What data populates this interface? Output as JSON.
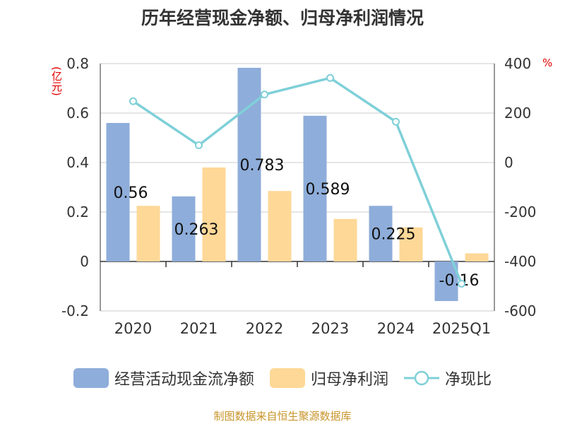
{
  "title": "历年经营现金净额、归母净利润情况",
  "source": "制图数据来自恒生聚源数据库",
  "colors": {
    "bar1": "#8eadda",
    "bar2": "#fed897",
    "line": "#7fd0d8",
    "red": "#e00000",
    "grid": "#cccccc"
  },
  "chart_data": {
    "type": "bar",
    "categories": [
      "2020",
      "2021",
      "2022",
      "2023",
      "2024",
      "2025Q1"
    ],
    "series": [
      {
        "name": "经营活动现金流净额",
        "type": "bar",
        "axis": "left",
        "values": [
          0.56,
          0.263,
          0.783,
          0.589,
          0.225,
          -0.16
        ],
        "labels": [
          "0.56",
          "0.263",
          "0.783",
          "0.589",
          "0.225",
          "-0.16"
        ]
      },
      {
        "name": "归母净利润",
        "type": "bar",
        "axis": "left",
        "values": [
          0.225,
          0.38,
          0.285,
          0.172,
          0.138,
          0.033
        ]
      },
      {
        "name": "净现比",
        "type": "line",
        "axis": "right",
        "values": [
          248,
          70,
          275,
          342,
          165,
          -490
        ]
      }
    ],
    "y_left": {
      "unit": "(亿元)",
      "range": [
        -0.2,
        0.8
      ],
      "ticks": [
        "-0.2",
        "0",
        "0.2",
        "0.4",
        "0.6",
        "0.8"
      ]
    },
    "y_right": {
      "unit": "%",
      "range": [
        -600,
        400
      ],
      "ticks": [
        "-600",
        "-400",
        "-200",
        "0",
        "200",
        "400"
      ]
    },
    "grid": true,
    "legend_position": "bottom"
  }
}
